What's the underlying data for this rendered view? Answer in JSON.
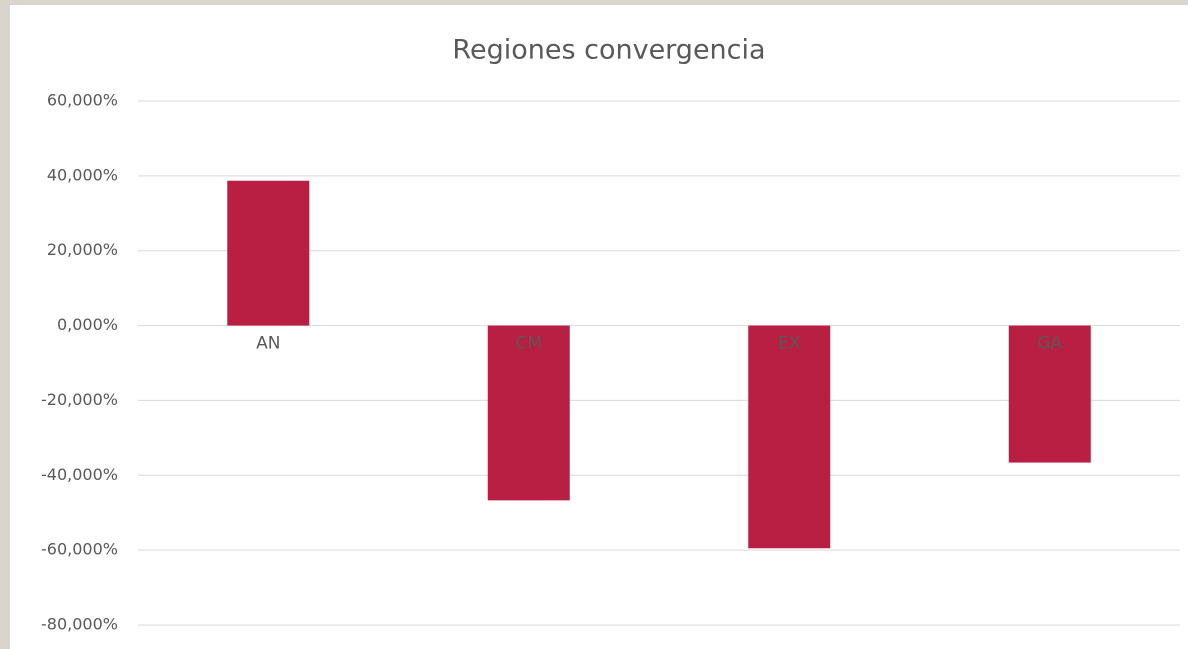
{
  "chart_data": {
    "type": "bar",
    "title": "Regiones convergencia",
    "categories": [
      "AN",
      "CM",
      "EX",
      "GA"
    ],
    "values": [
      38.7,
      -46.7,
      -59.5,
      -36.6
    ],
    "color": "#b91e43",
    "ylim": [
      -80,
      60
    ],
    "yticks": [
      {
        "value": -80,
        "label": "-80,000%"
      },
      {
        "value": -60,
        "label": "-60,000%"
      },
      {
        "value": -40,
        "label": "-40,000%"
      },
      {
        "value": -20,
        "label": "-20,000%"
      },
      {
        "value": 0,
        "label": "0,000%"
      },
      {
        "value": 20,
        "label": "20,000%"
      },
      {
        "value": 40,
        "label": "40,000%"
      },
      {
        "value": 60,
        "label": "60,000%"
      }
    ],
    "grid": true
  }
}
